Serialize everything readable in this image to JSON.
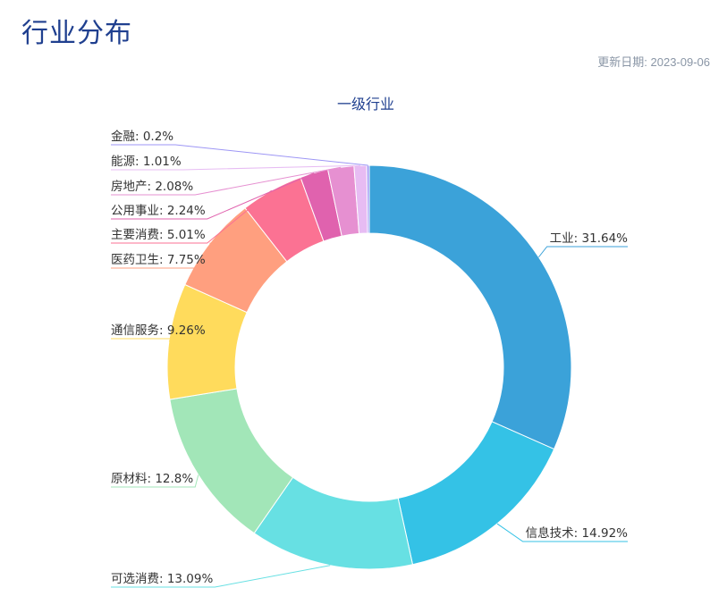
{
  "header": {
    "title": "行业分布",
    "updated_label": "更新日期: ",
    "updated_date": "2023-09-06"
  },
  "chart_data": {
    "type": "pie",
    "variant": "donut",
    "title": "一级行业",
    "series": [
      {
        "name": "工业",
        "value": 31.64,
        "color": "#3ba2d9"
      },
      {
        "name": "信息技术",
        "value": 14.92,
        "color": "#34c2e6"
      },
      {
        "name": "可选消费",
        "value": 13.09,
        "color": "#67e0e3"
      },
      {
        "name": "原材料",
        "value": 12.8,
        "color": "#a2e6b8"
      },
      {
        "name": "通信服务",
        "value": 9.26,
        "color": "#ffdb5c"
      },
      {
        "name": "医药卫生",
        "value": 7.75,
        "color": "#ff9f7f"
      },
      {
        "name": "主要消费",
        "value": 5.01,
        "color": "#fb7293"
      },
      {
        "name": "公用事业",
        "value": 2.24,
        "color": "#e062ae"
      },
      {
        "name": "房地产",
        "value": 2.08,
        "color": "#e690d1"
      },
      {
        "name": "能源",
        "value": 1.01,
        "color": "#e7bcf3"
      },
      {
        "name": "金融",
        "value": 0.2,
        "color": "#9d96f5"
      }
    ]
  }
}
